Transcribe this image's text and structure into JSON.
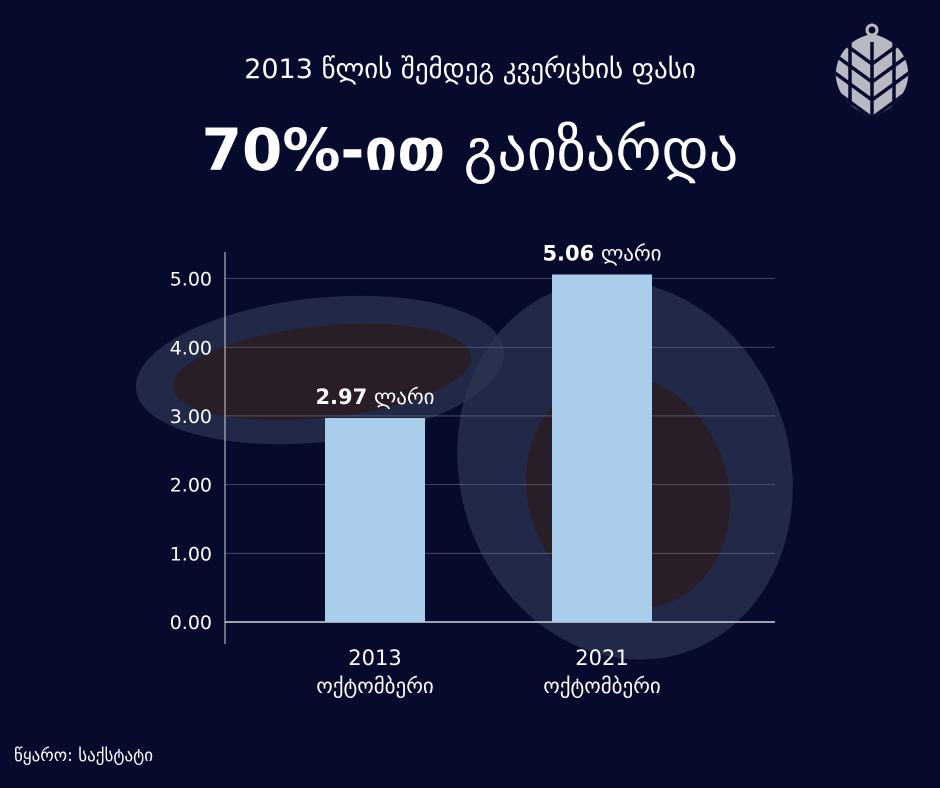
{
  "header": {
    "subtitle": "2013 წლის შემდეგ კვერცხის ფასი",
    "headline_bold": "70%-ით",
    "headline_rest": "გაიზარდა"
  },
  "source": "წყარო: საქსტატი",
  "logo": {
    "icon": "pine-cone-icon",
    "color": "#b9b9c4"
  },
  "colors": {
    "background": "#060b2e",
    "bar": "#a9cdea",
    "text": "#ffffff"
  },
  "chart_data": {
    "type": "bar",
    "categories": [
      [
        "2013",
        "ოქტომბერი"
      ],
      [
        "2021",
        "ოქტომბერი"
      ]
    ],
    "values": [
      2.97,
      5.06
    ],
    "data_labels": [
      {
        "value": "2.97",
        "unit": "ლარი"
      },
      {
        "value": "5.06",
        "unit": "ლარი"
      }
    ],
    "y_ticks": [
      "0.00",
      "1.00",
      "2.00",
      "3.00",
      "4.00",
      "5.00"
    ],
    "ylim": [
      0,
      5.3
    ],
    "grid": true,
    "title": "",
    "xlabel": "",
    "ylabel": ""
  }
}
